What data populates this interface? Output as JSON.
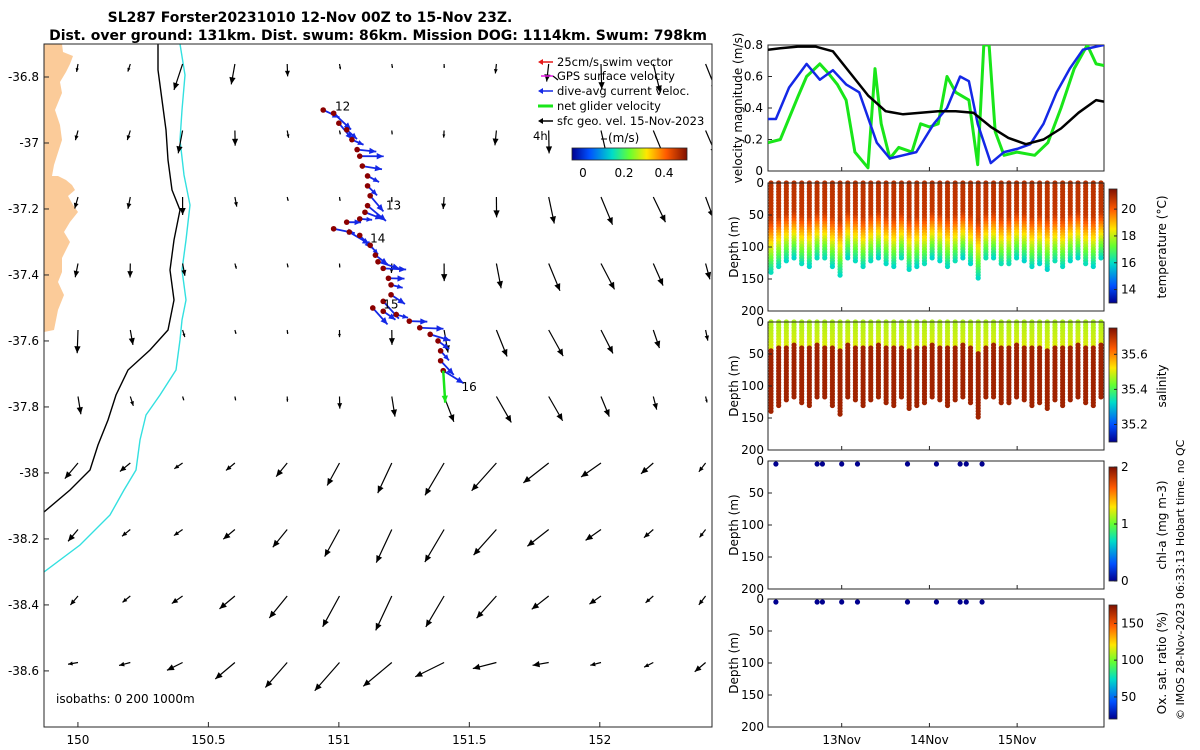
{
  "title": {
    "line1": "SL287 Forster20231010 12-Nov 00Z to 15-Nov 23Z.",
    "line2": "Dist. over ground: 131km. Dist. swum: 86km. Mission DOG: 1114km. Swum: 798km"
  },
  "colors": {
    "land": "#fbcb99",
    "isobath_200": "#000000",
    "isobath_1000": "#33e0e0",
    "dive_avg": "#1428e6",
    "net_glider": "#19e619",
    "geo_vel": "#000000",
    "swim_vec": "#e61919",
    "gps_vel": "#e619e6",
    "track_dot": "#8b0000",
    "vm_black": "#000000"
  },
  "map": {
    "legend": {
      "swim": "25cm/s swim vector",
      "gps": "GPS surface velocity",
      "diveavg": "dive-avg current veloc.",
      "net": "net glider velocity",
      "geo": "sfc geo. vel. 15-Nov-2023"
    },
    "colorbar": {
      "prefix": "4h",
      "label": "(m/s)",
      "ticks": [
        "0",
        "0.2",
        "0.4"
      ]
    },
    "isobath_label": "isobaths: 0   200  1000m",
    "day_labels": [
      "12",
      "13",
      "14",
      "15",
      "16"
    ]
  },
  "chart_data": [
    {
      "type": "scatter",
      "name": "map",
      "xlabel": "",
      "ylabel": "",
      "xlim": [
        149.87,
        152.43
      ],
      "ylim": [
        -38.77,
        -36.7
      ],
      "x_ticks": [
        "150",
        "150.5",
        "151",
        "151.5",
        "152"
      ],
      "y_ticks": [
        "-36.8",
        "-37",
        "-37.2",
        "-37.4",
        "-37.6",
        "-37.8",
        "-38",
        "-38.2",
        "-38.4",
        "-38.6"
      ],
      "track": [
        [
          150.94,
          -36.9
        ],
        [
          150.98,
          -36.91
        ],
        [
          151.0,
          -36.94
        ],
        [
          151.03,
          -36.96
        ],
        [
          151.05,
          -36.99
        ],
        [
          151.07,
          -37.02
        ],
        [
          151.08,
          -37.04
        ],
        [
          151.09,
          -37.07
        ],
        [
          151.11,
          -37.1
        ],
        [
          151.11,
          -37.13
        ],
        [
          151.12,
          -37.16
        ],
        [
          151.11,
          -37.19
        ],
        [
          151.1,
          -37.21
        ],
        [
          151.08,
          -37.23
        ],
        [
          151.03,
          -37.24
        ],
        [
          150.98,
          -37.26
        ],
        [
          151.04,
          -37.27
        ],
        [
          151.08,
          -37.28
        ],
        [
          151.12,
          -37.31
        ],
        [
          151.14,
          -37.34
        ],
        [
          151.15,
          -37.36
        ],
        [
          151.17,
          -37.38
        ],
        [
          151.19,
          -37.41
        ],
        [
          151.2,
          -37.43
        ],
        [
          151.2,
          -37.46
        ],
        [
          151.17,
          -37.48
        ],
        [
          151.13,
          -37.5
        ],
        [
          151.17,
          -37.51
        ],
        [
          151.22,
          -37.52
        ],
        [
          151.27,
          -37.54
        ],
        [
          151.31,
          -37.56
        ],
        [
          151.35,
          -37.58
        ],
        [
          151.38,
          -37.6
        ],
        [
          151.39,
          -37.63
        ],
        [
          151.39,
          -37.66
        ],
        [
          151.4,
          -37.69
        ]
      ]
    },
    {
      "type": "line",
      "name": "velocity_magnitude",
      "ylabel": "velocity magnitude (m/s)",
      "xlim": [
        12.16,
        15.99
      ],
      "ylim": [
        0,
        0.8
      ],
      "y_ticks": [
        "0",
        "0.2",
        "0.4",
        "0.6",
        "0.8"
      ],
      "series": [
        {
          "name": "geo",
          "x": [
            12.16,
            12.3,
            12.5,
            12.7,
            12.9,
            13.1,
            13.3,
            13.5,
            13.7,
            13.9,
            14.1,
            14.3,
            14.5,
            14.7,
            14.9,
            15.1,
            15.3,
            15.5,
            15.7,
            15.9,
            15.99
          ],
          "y": [
            0.77,
            0.78,
            0.79,
            0.79,
            0.76,
            0.62,
            0.48,
            0.38,
            0.36,
            0.37,
            0.38,
            0.38,
            0.37,
            0.28,
            0.21,
            0.17,
            0.2,
            0.27,
            0.37,
            0.45,
            0.44
          ]
        },
        {
          "name": "dive_avg",
          "x": [
            12.16,
            12.25,
            12.4,
            12.6,
            12.75,
            12.9,
            13.05,
            13.2,
            13.4,
            13.55,
            13.7,
            13.85,
            14.05,
            14.2,
            14.35,
            14.45,
            14.55,
            14.7,
            14.85,
            15.0,
            15.15,
            15.3,
            15.45,
            15.6,
            15.75,
            15.9,
            15.99
          ],
          "y": [
            0.33,
            0.33,
            0.53,
            0.68,
            0.58,
            0.64,
            0.55,
            0.5,
            0.18,
            0.08,
            0.1,
            0.12,
            0.3,
            0.4,
            0.6,
            0.57,
            0.3,
            0.05,
            0.12,
            0.14,
            0.17,
            0.3,
            0.5,
            0.65,
            0.77,
            0.79,
            0.8
          ]
        },
        {
          "name": "net",
          "x": [
            12.16,
            12.3,
            12.5,
            12.6,
            12.75,
            12.85,
            12.95,
            13.05,
            13.15,
            13.3,
            13.38,
            13.45,
            13.55,
            13.65,
            13.8,
            13.9,
            14.0,
            14.1,
            14.2,
            14.3,
            14.45,
            14.55,
            14.62,
            14.68,
            14.75,
            14.85,
            15.0,
            15.2,
            15.35,
            15.5,
            15.65,
            15.8,
            15.9,
            15.99
          ],
          "y": [
            0.18,
            0.2,
            0.47,
            0.6,
            0.68,
            0.62,
            0.55,
            0.45,
            0.12,
            0.02,
            0.65,
            0.3,
            0.08,
            0.15,
            0.12,
            0.3,
            0.28,
            0.3,
            0.6,
            0.5,
            0.45,
            0.04,
            0.8,
            0.8,
            0.25,
            0.1,
            0.12,
            0.1,
            0.18,
            0.4,
            0.65,
            0.8,
            0.68,
            0.67
          ]
        }
      ]
    },
    {
      "type": "heatmap",
      "name": "temperature",
      "clabel": "temperature (°C)",
      "clim": [
        13,
        21.5
      ],
      "c_ticks": [
        "14",
        "16",
        "18",
        "20"
      ],
      "depth_ticks": [
        "0",
        "50",
        "100",
        "150",
        "200"
      ],
      "profile_bottom_m": 125,
      "surface_value": 20.8,
      "bottom_value": 16.2
    },
    {
      "type": "heatmap",
      "name": "salinity",
      "clabel": "salinity",
      "clim": [
        35.1,
        35.75
      ],
      "c_ticks": [
        "35.2",
        "35.4",
        "35.6"
      ],
      "depth_ticks": [
        "0",
        "50",
        "100",
        "150",
        "200"
      ],
      "profile_bottom_m": 125,
      "surface_value": 35.47,
      "bottom_value": 35.72
    },
    {
      "type": "scatter",
      "name": "chl_a",
      "clabel": "chl-a (mg m-3)",
      "clim": [
        0,
        2
      ],
      "c_ticks": [
        "0",
        "1",
        "2"
      ],
      "depth_ticks": [
        "0",
        "50",
        "100",
        "150",
        "200"
      ],
      "sample_days": [
        12.25,
        12.72,
        12.78,
        13.0,
        13.18,
        13.75,
        14.08,
        14.35,
        14.42,
        14.6
      ],
      "sample_depth_m": 0
    },
    {
      "type": "scatter",
      "name": "oxygen",
      "clabel": "Ox. sat. ratio (%)",
      "clim": [
        20,
        175
      ],
      "c_ticks": [
        "50",
        "100",
        "150"
      ],
      "depth_ticks": [
        "0",
        "50",
        "100",
        "150",
        "200"
      ],
      "sample_days": [
        12.25,
        12.72,
        12.78,
        13.0,
        13.18,
        13.75,
        14.08,
        14.35,
        14.42,
        14.6
      ],
      "sample_depth_m": 0,
      "x_ticks": [
        "13Nov",
        "14Nov",
        "15Nov"
      ]
    }
  ],
  "footer": "© IMOS 28-Nov-2023 06:33:13 Hobart time. no QC"
}
